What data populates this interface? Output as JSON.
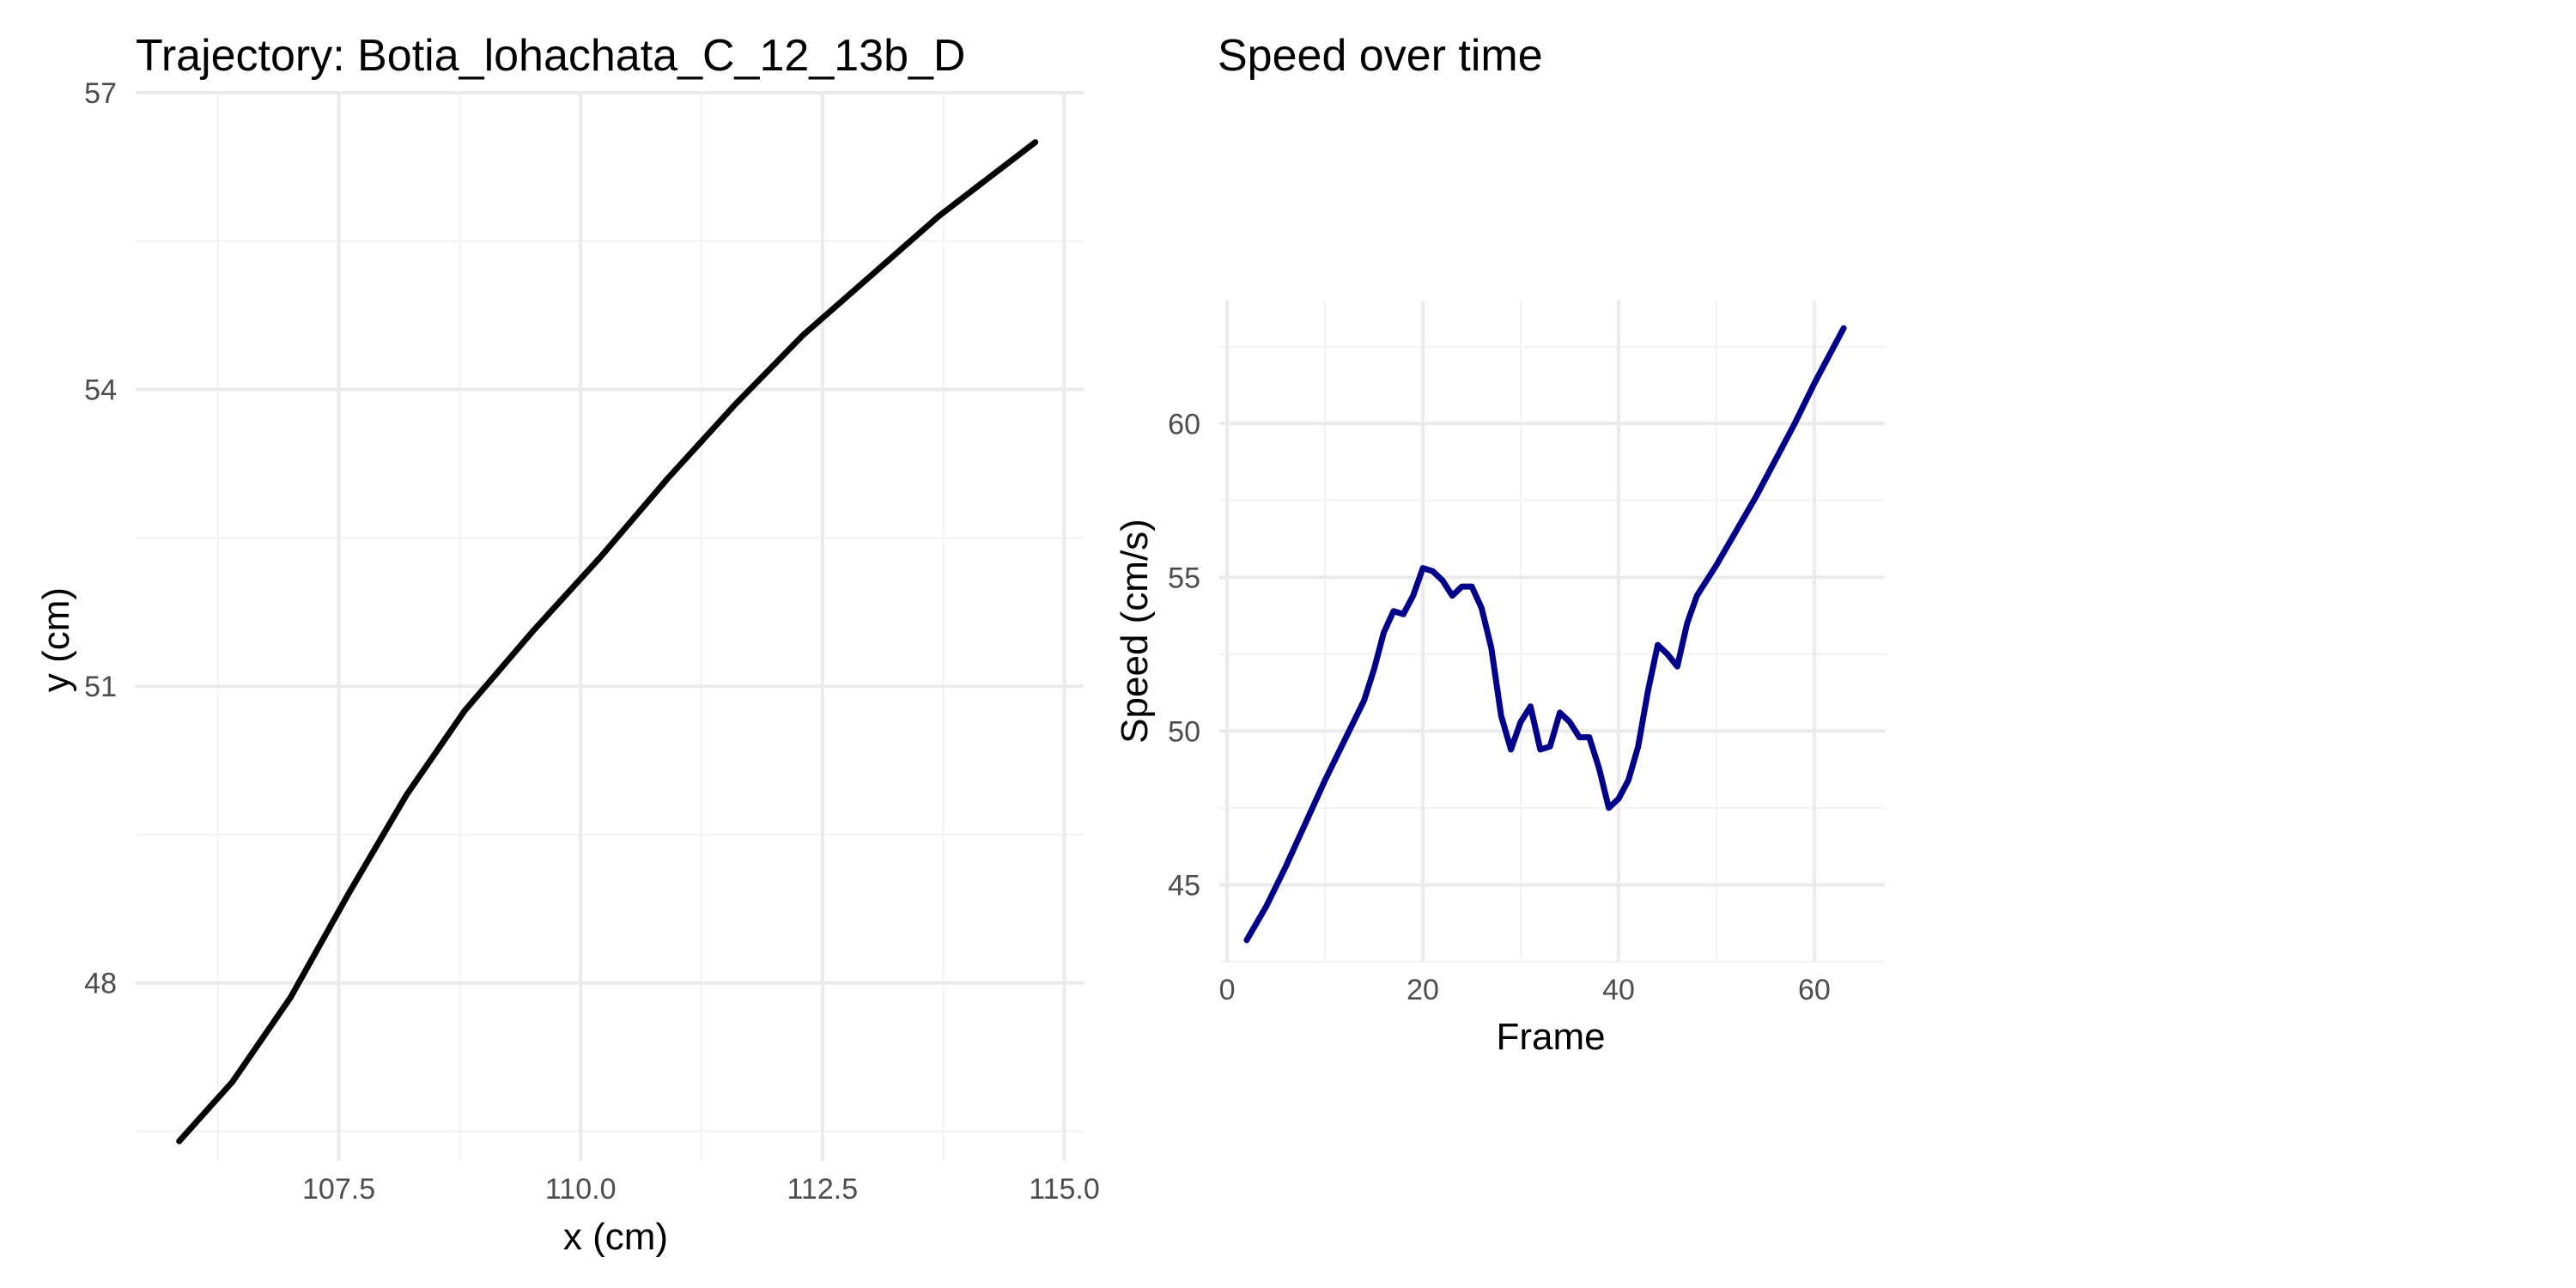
{
  "chart_data": [
    {
      "type": "line",
      "title": "Trajectory: Botia_lohachata_C_12_13b_D",
      "xlabel": "x (cm)",
      "ylabel": "y (cm)",
      "xlim": [
        105.4,
        115.2
      ],
      "ylim": [
        46.2,
        57.0
      ],
      "x_ticks": [
        107.5,
        110.0,
        112.5,
        115.0
      ],
      "x_tick_labels": [
        "107.5",
        "110.0",
        "112.5",
        "115.0"
      ],
      "y_ticks": [
        48,
        51,
        54,
        57
      ],
      "y_tick_labels": [
        "48",
        "51",
        "54",
        "57"
      ],
      "grid": true,
      "line_color": "#000000",
      "series": [
        {
          "x": [
            105.85,
            106.4,
            107.0,
            107.6,
            108.2,
            108.8,
            109.5,
            110.2,
            110.9,
            111.6,
            112.3,
            113.0,
            113.7,
            114.3,
            114.7
          ],
          "y": [
            46.4,
            47.0,
            47.85,
            48.9,
            49.9,
            50.75,
            51.55,
            52.3,
            53.1,
            53.85,
            54.55,
            55.15,
            55.75,
            56.2,
            56.5
          ]
        }
      ]
    },
    {
      "type": "line",
      "title": "Speed over time",
      "xlabel": "Frame",
      "ylabel": "Speed (cm/s)",
      "xlim": [
        -0.8,
        67.2
      ],
      "ylim": [
        42.5,
        64.0
      ],
      "x_ticks": [
        0,
        20,
        40,
        60
      ],
      "x_tick_labels": [
        "0",
        "20",
        "40",
        "60"
      ],
      "y_ticks": [
        45,
        50,
        55,
        60
      ],
      "y_tick_labels": [
        "45",
        "50",
        "55",
        "60"
      ],
      "grid": true,
      "line_color": "#00008b",
      "series": [
        {
          "x": [
            2,
            4,
            6,
            8,
            10,
            12,
            14,
            15,
            16,
            17,
            18,
            19,
            20,
            21,
            22,
            23,
            24,
            25,
            26,
            27,
            28,
            29,
            30,
            31,
            32,
            33,
            34,
            35,
            36,
            37,
            38,
            39,
            40,
            41,
            42,
            43,
            44,
            45,
            46,
            47,
            48,
            49,
            50,
            52,
            54,
            56,
            58,
            60,
            62,
            63
          ],
          "y": [
            43.2,
            44.3,
            45.6,
            47.0,
            48.4,
            49.7,
            51.0,
            52.0,
            53.2,
            53.9,
            53.8,
            54.4,
            55.3,
            55.2,
            54.9,
            54.4,
            54.7,
            54.7,
            54.0,
            52.7,
            50.5,
            49.4,
            50.3,
            50.8,
            49.4,
            49.5,
            50.6,
            50.3,
            49.8,
            49.8,
            48.8,
            47.5,
            47.8,
            48.4,
            49.5,
            51.3,
            52.8,
            52.5,
            52.1,
            53.5,
            54.4,
            54.9,
            55.4,
            56.5,
            57.6,
            58.8,
            60.0,
            61.3,
            62.5,
            63.1
          ]
        }
      ]
    }
  ]
}
